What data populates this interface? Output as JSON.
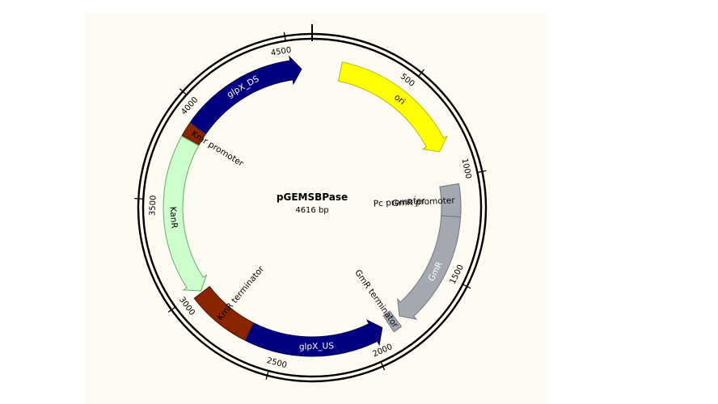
{
  "plasmid": {
    "name": "pGEMSBPase",
    "size_label": "4616 bp",
    "length": 4616
  },
  "ticks": [
    {
      "position": 500,
      "label": "500"
    },
    {
      "position": 1000,
      "label": "1000"
    },
    {
      "position": 1500,
      "label": "1500"
    },
    {
      "position": 2000,
      "label": "2000"
    },
    {
      "position": 2500,
      "label": "2500"
    },
    {
      "position": 3000,
      "label": "3000"
    },
    {
      "position": 3500,
      "label": "3500"
    },
    {
      "position": 4000,
      "label": "4000"
    },
    {
      "position": 4500,
      "label": "4500"
    }
  ],
  "features": [
    {
      "id": "ori",
      "label": "ori",
      "start": 150,
      "end": 850,
      "direction": "cw",
      "color": "#ffff00",
      "stroke": "#b8b800",
      "text_color": "#000000",
      "label_pos": "inside"
    },
    {
      "id": "gmr-promoter",
      "label": "GmR promoter",
      "start": 1035,
      "end": 1200,
      "direction": "none",
      "color": "#a3a8b1",
      "stroke": "#6f7480",
      "text_color": "#000000",
      "label_pos": "inner"
    },
    {
      "id": "gmr",
      "label": "GmR",
      "start": 1200,
      "end": 1810,
      "direction": "cw",
      "color": "#a3a8b1",
      "stroke": "#6f7480",
      "text_color": "#ffffff",
      "label_pos": "inside"
    },
    {
      "id": "gmr-terminator",
      "label": "GmR terminator",
      "start": 1835,
      "end": 1880,
      "direction": "none",
      "color": "#a3a8b1",
      "stroke": "#6f7480",
      "text_color": "#000000",
      "label_pos": "inner"
    },
    {
      "id": "glpx-us",
      "label": "glpX_US",
      "start": 1920,
      "end": 2650,
      "direction": "ccw",
      "color": "#000080",
      "stroke": "#000040",
      "text_color": "#ffffff",
      "label_pos": "inside"
    },
    {
      "id": "kmr-terminator",
      "label": "KmR terminator",
      "start": 2655,
      "end": 2980,
      "direction": "none",
      "color": "#8b2500",
      "stroke": "#4a1400",
      "text_color": "#000000",
      "label_pos": "inner"
    },
    {
      "id": "kanr",
      "label": "KanR",
      "start": 2990,
      "end": 3830,
      "direction": "ccw",
      "color": "#ccffcc",
      "stroke": "#6aa86a",
      "text_color": "#000000",
      "label_pos": "inside"
    },
    {
      "id": "kmr-promoter",
      "label": "Kmr promoter",
      "start": 3835,
      "end": 3905,
      "direction": "none",
      "color": "#8b2500",
      "stroke": "#4a1400",
      "text_color": "#000000",
      "label_pos": "inner"
    },
    {
      "id": "glpx-ds",
      "label": "glpX_DS",
      "start": 3910,
      "end": 4560,
      "direction": "cw",
      "color": "#000080",
      "stroke": "#000040",
      "text_color": "#ffffff",
      "label_pos": "inside"
    }
  ],
  "extra_labels": [
    {
      "id": "pc-promoter",
      "label": "Pc promoter",
      "position": 1110
    }
  ]
}
